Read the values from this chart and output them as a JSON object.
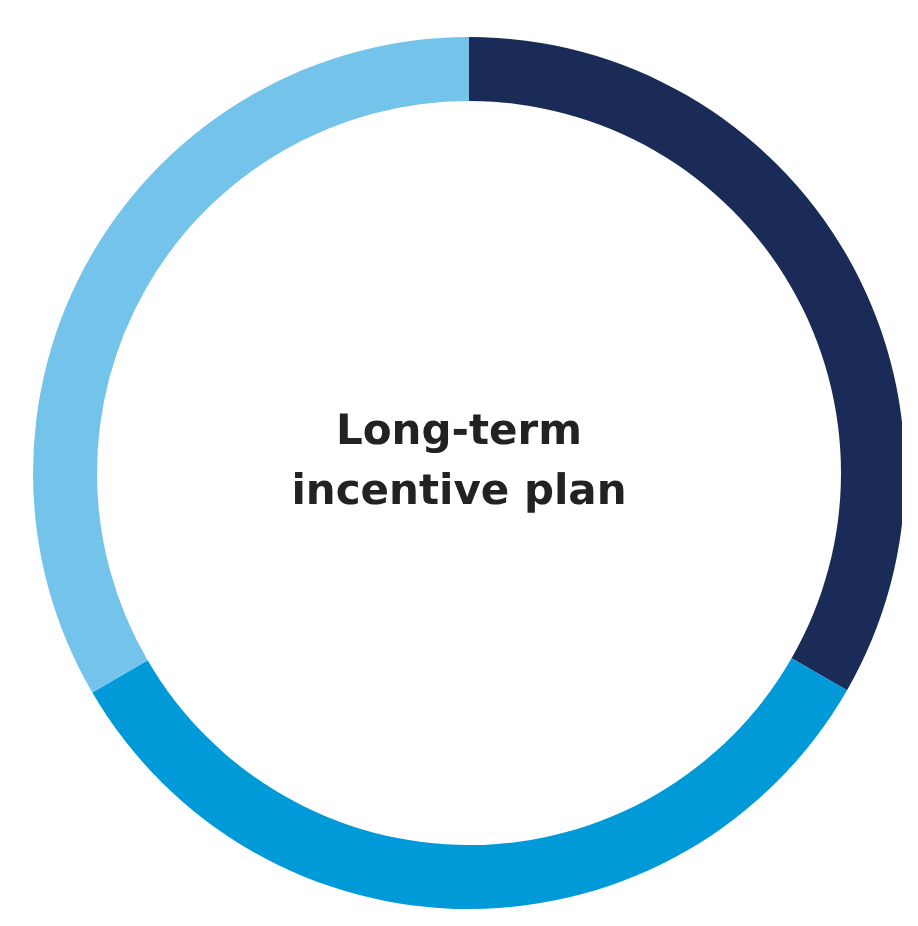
{
  "chart_data": {
    "type": "donut",
    "title": "Long-term incentive plan",
    "categories": [
      null,
      null,
      null
    ],
    "values": [
      33.3,
      33.3,
      33.4
    ],
    "colors": [
      "#1a2b57",
      "#009ad8",
      "#74c3ea"
    ]
  }
}
